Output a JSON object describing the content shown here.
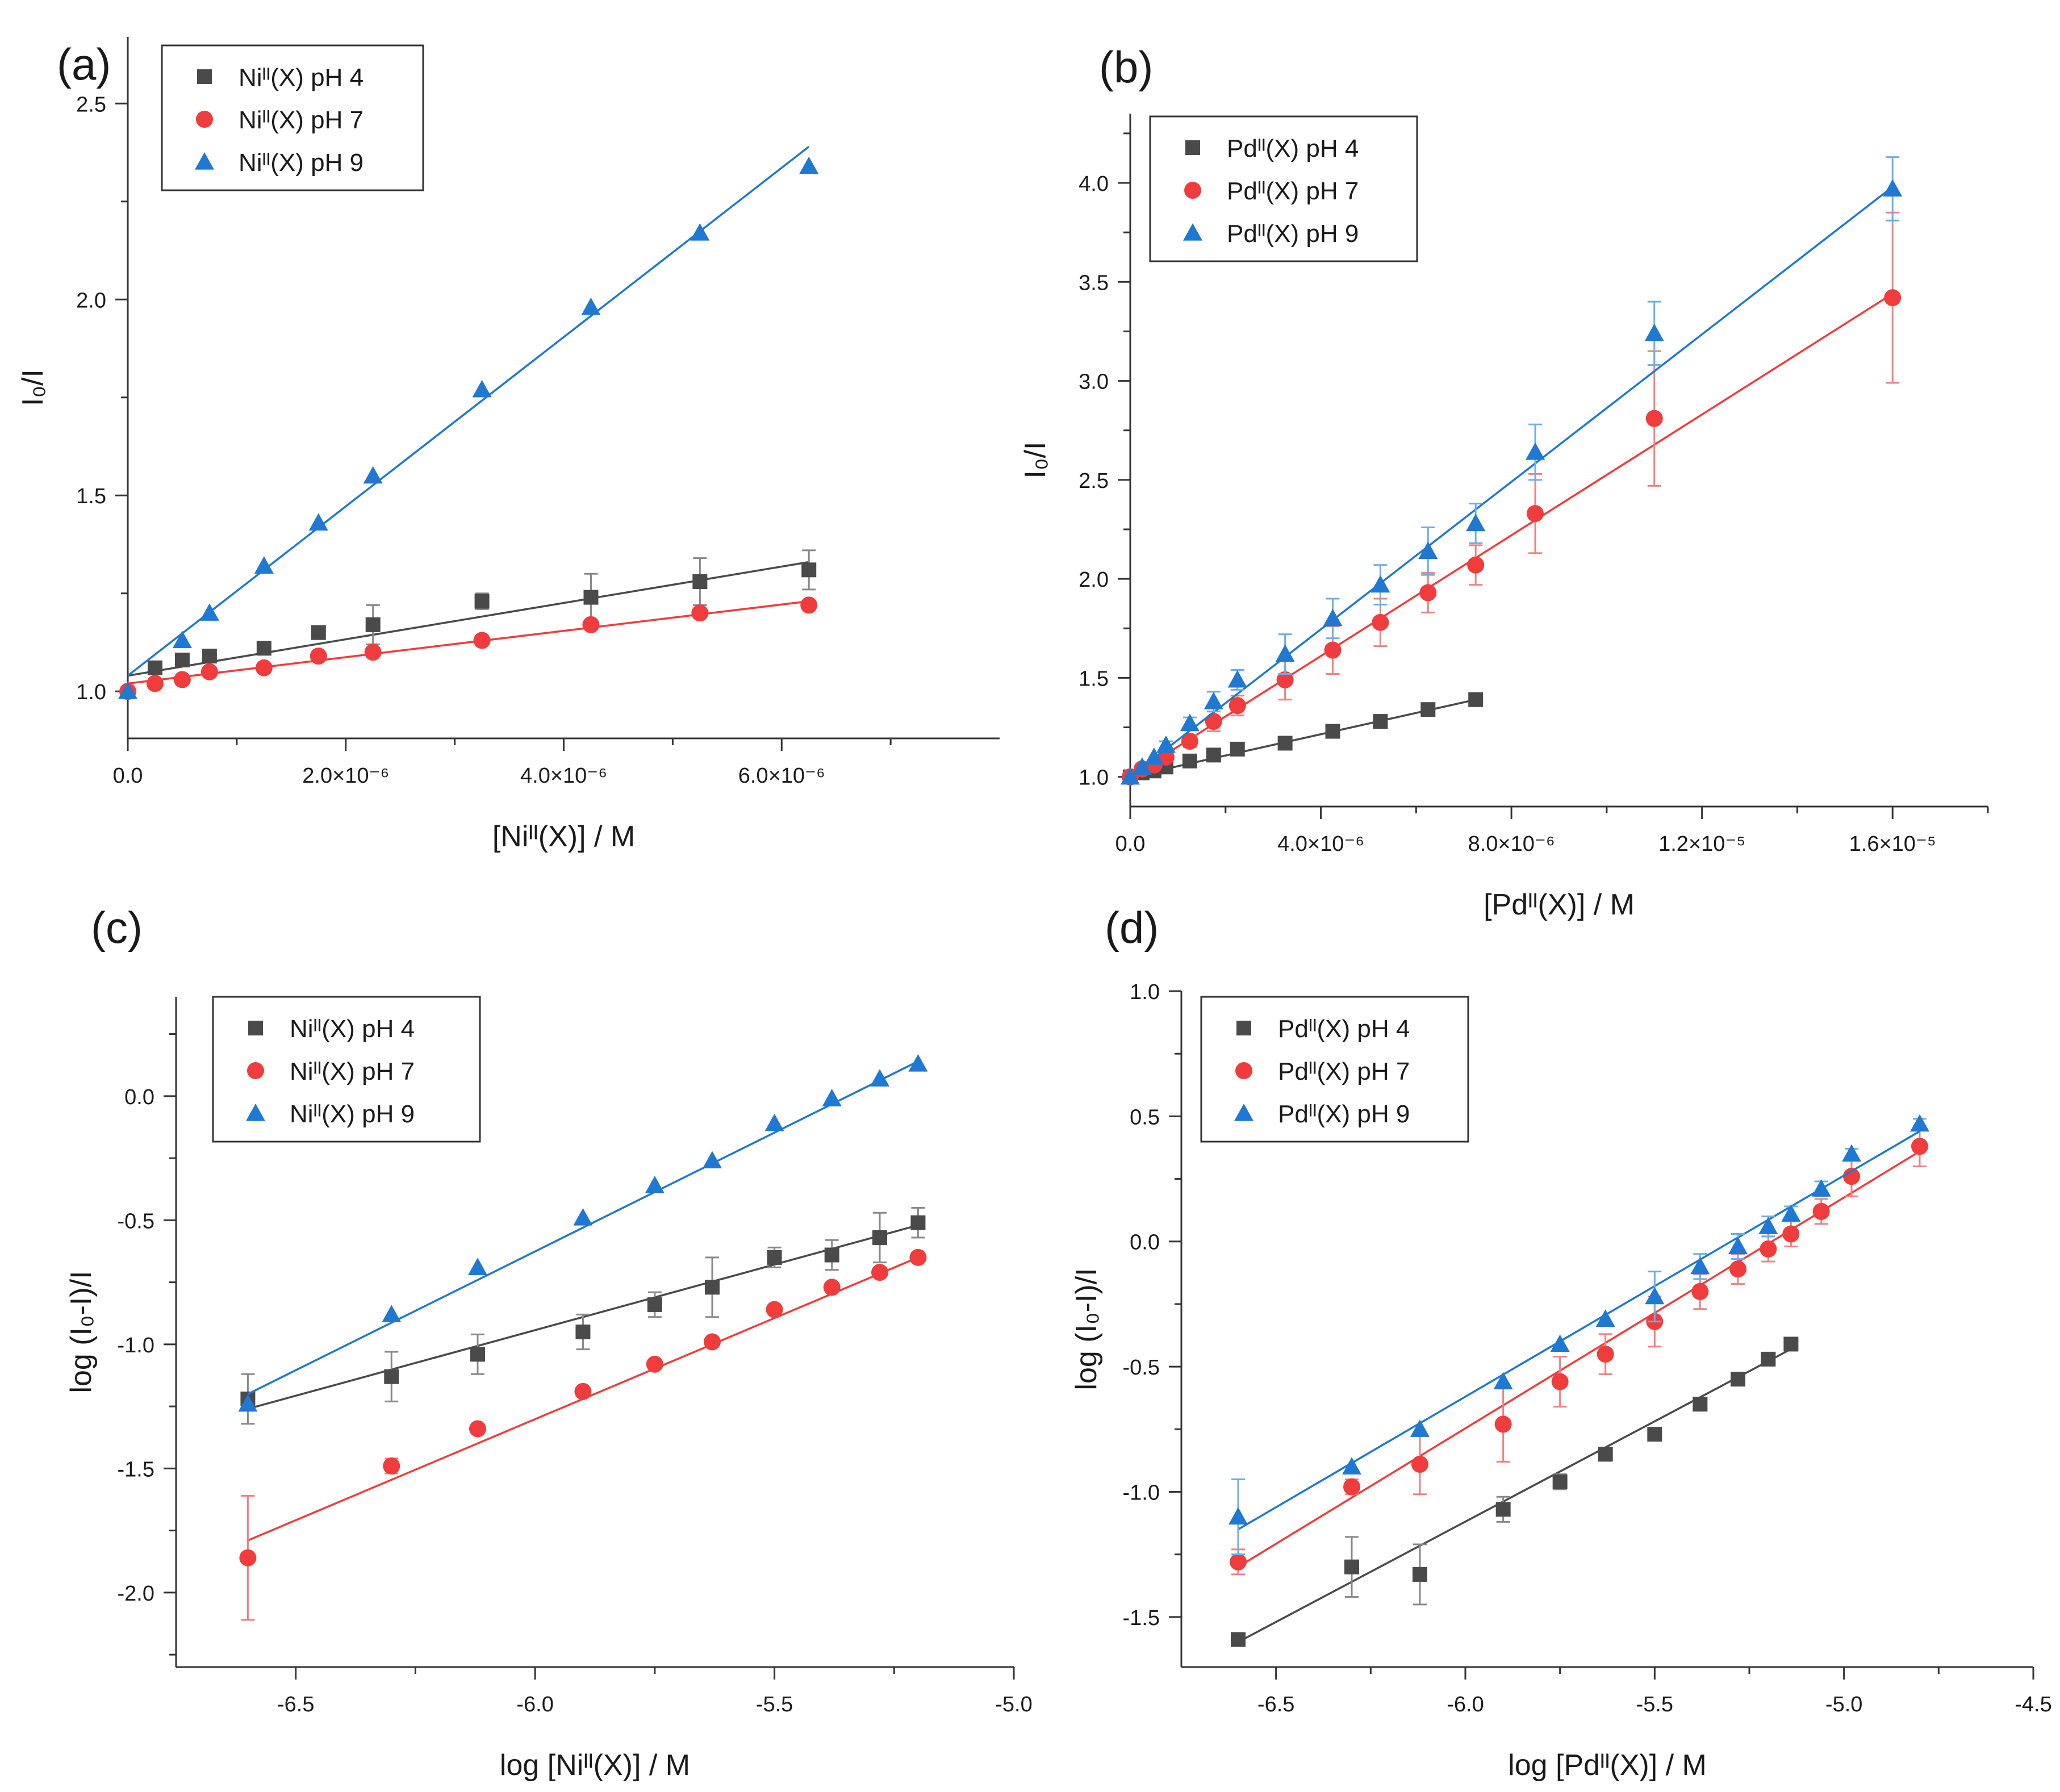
{
  "chart_data": [
    {
      "type": "scatter",
      "panel_label": "(a)",
      "xlabel": "[Niᴵᴵ(X)] / M",
      "ylabel": "I₀/I",
      "xlim": [
        0,
        8e-06
      ],
      "ylim": [
        0.88,
        2.67
      ],
      "xticks": [
        0,
        2e-06,
        4e-06,
        6e-06
      ],
      "xtick_labels": [
        "0.0",
        "2.0×10⁻⁶",
        "4.0×10⁻⁶",
        "6.0×10⁻⁶"
      ],
      "yticks": [
        1.0,
        1.5,
        2.0,
        2.5
      ],
      "ytick_labels": [
        "1.0",
        "1.5",
        "2.0",
        "2.5"
      ],
      "legend_position": "top-left",
      "series": [
        {
          "name": "Niᴵᴵ(X) pH 4",
          "color": "#4a4a4a",
          "marker": "square",
          "x": [
            2.5e-07,
            5e-07,
            7.5e-07,
            1.25e-06,
            1.75e-06,
            2.25e-06,
            3.25e-06,
            4.25e-06,
            5.25e-06,
            6.25e-06
          ],
          "y": [
            1.06,
            1.08,
            1.09,
            1.11,
            1.15,
            1.17,
            1.23,
            1.24,
            1.28,
            1.31
          ],
          "err": [
            0,
            0,
            0,
            0.01,
            0.01,
            0.05,
            0.02,
            0.06,
            0.06,
            0.05
          ],
          "fit": [
            [
              0,
              1.04
            ],
            [
              6.25e-06,
              1.33
            ]
          ]
        },
        {
          "name": "Niᴵᴵ(X) pH 7",
          "color": "#f03c3c",
          "marker": "circle",
          "x": [
            0,
            2.5e-07,
            5e-07,
            7.5e-07,
            1.25e-06,
            1.75e-06,
            2.25e-06,
            3.25e-06,
            4.25e-06,
            5.25e-06,
            6.25e-06
          ],
          "y": [
            1.0,
            1.02,
            1.03,
            1.05,
            1.06,
            1.09,
            1.1,
            1.13,
            1.17,
            1.2,
            1.22
          ],
          "err": [
            0,
            0,
            0,
            0,
            0,
            0,
            0,
            0,
            0,
            0,
            0
          ],
          "fit": [
            [
              0,
              1.02
            ],
            [
              6.25e-06,
              1.23
            ]
          ]
        },
        {
          "name": "Niᴵᴵ(X) pH 9",
          "color": "#1f78d1",
          "marker": "triangle",
          "x": [
            0,
            5e-07,
            7.5e-07,
            1.25e-06,
            1.75e-06,
            2.25e-06,
            3.25e-06,
            4.25e-06,
            5.25e-06,
            6.25e-06
          ],
          "y": [
            1.0,
            1.13,
            1.2,
            1.32,
            1.43,
            1.55,
            1.77,
            1.98,
            2.17,
            2.34
          ],
          "err": [
            0,
            0,
            0,
            0,
            0,
            0,
            0,
            0,
            0,
            0
          ],
          "fit": [
            [
              0,
              1.04
            ],
            [
              6.25e-06,
              2.39
            ]
          ]
        }
      ]
    },
    {
      "type": "scatter",
      "panel_label": "(b)",
      "xlabel": "[Pdᴵᴵ(X)] / M",
      "ylabel": "I₀/I",
      "xlim": [
        0,
        1.8e-05
      ],
      "ylim": [
        0.85,
        4.35
      ],
      "xticks": [
        0,
        4e-06,
        8e-06,
        1.2e-05,
        1.6e-05
      ],
      "xtick_labels": [
        "0.0",
        "4.0×10⁻⁶",
        "8.0×10⁻⁶",
        "1.2×10⁻⁵",
        "1.6×10⁻⁵"
      ],
      "yticks": [
        1.0,
        1.5,
        2.0,
        2.5,
        3.0,
        3.5,
        4.0
      ],
      "ytick_labels": [
        "1.0",
        "1.5",
        "2.0",
        "2.5",
        "3.0",
        "3.5",
        "4.0"
      ],
      "legend_position": "top-left",
      "series": [
        {
          "name": "Pdᴵᴵ(X) pH 4",
          "color": "#4a4a4a",
          "marker": "square",
          "x": [
            0,
            2.5e-07,
            5e-07,
            7.5e-07,
            1.25e-06,
            1.75e-06,
            2.25e-06,
            3.25e-06,
            4.25e-06,
            5.25e-06,
            6.25e-06,
            7.25e-06
          ],
          "y": [
            1.0,
            1.02,
            1.03,
            1.05,
            1.08,
            1.11,
            1.14,
            1.17,
            1.23,
            1.28,
            1.34,
            1.39
          ],
          "err": [
            0,
            0,
            0,
            0,
            0,
            0,
            0,
            0,
            0,
            0,
            0,
            0
          ],
          "fit": [
            [
              0,
              1.0
            ],
            [
              7.25e-06,
              1.39
            ]
          ]
        },
        {
          "name": "Pdᴵᴵ(X) pH 7",
          "color": "#f03c3c",
          "marker": "circle",
          "x": [
            0,
            2.5e-07,
            5e-07,
            7.5e-07,
            1.25e-06,
            1.75e-06,
            2.25e-06,
            3.25e-06,
            4.25e-06,
            5.25e-06,
            6.25e-06,
            7.25e-06,
            8.5e-06,
            1.1e-05,
            1.6e-05
          ],
          "y": [
            1.0,
            1.04,
            1.06,
            1.1,
            1.18,
            1.28,
            1.36,
            1.49,
            1.64,
            1.78,
            1.93,
            2.07,
            2.33,
            2.81,
            3.42
          ],
          "err": [
            0,
            0,
            0,
            0.02,
            0.03,
            0.05,
            0.05,
            0.1,
            0.12,
            0.12,
            0.1,
            0.1,
            0.2,
            0.34,
            0.43
          ],
          "fit": [
            [
              0,
              1.0
            ],
            [
              1.6e-05,
              3.44
            ]
          ]
        },
        {
          "name": "Pdᴵᴵ(X) pH 9",
          "color": "#1f78d1",
          "marker": "triangle",
          "x": [
            0,
            2.5e-07,
            5e-07,
            7.5e-07,
            1.25e-06,
            1.75e-06,
            2.25e-06,
            3.25e-06,
            4.25e-06,
            5.25e-06,
            6.25e-06,
            7.25e-06,
            8.5e-06,
            1.1e-05,
            1.6e-05
          ],
          "y": [
            1.0,
            1.05,
            1.1,
            1.16,
            1.27,
            1.38,
            1.49,
            1.62,
            1.8,
            1.97,
            2.14,
            2.28,
            2.64,
            3.24,
            3.97
          ],
          "err": [
            0,
            0,
            0,
            0.02,
            0.03,
            0.05,
            0.05,
            0.1,
            0.1,
            0.1,
            0.12,
            0.1,
            0.14,
            0.16,
            0.16
          ],
          "fit": [
            [
              0,
              1.0
            ],
            [
              1.6e-05,
              3.98
            ]
          ]
        }
      ]
    },
    {
      "type": "scatter",
      "panel_label": "(c)",
      "xlabel": "log [Niᴵᴵ(X)] / M",
      "ylabel": "log (I₀-I)/I",
      "xlim": [
        -6.75,
        -5.0
      ],
      "ylim": [
        -2.3,
        0.4
      ],
      "xticks": [
        -6.5,
        -6.0,
        -5.5,
        -5.0
      ],
      "xtick_labels": [
        "-6.5",
        "-6.0",
        "-5.5",
        "-5.0"
      ],
      "yticks": [
        -2.0,
        -1.5,
        -1.0,
        -0.5,
        0.0
      ],
      "ytick_labels": [
        "-2.0",
        "-1.5",
        "-1.0",
        "-0.5",
        "0.0"
      ],
      "legend_position": "top-left",
      "series": [
        {
          "name": "Niᴵᴵ(X) pH 4",
          "color": "#4a4a4a",
          "marker": "square",
          "x": [
            -6.6,
            -6.3,
            -6.12,
            -5.9,
            -5.75,
            -5.63,
            -5.5,
            -5.38,
            -5.28,
            -5.2
          ],
          "y": [
            -1.22,
            -1.13,
            -1.04,
            -0.95,
            -0.84,
            -0.77,
            -0.65,
            -0.64,
            -0.57,
            -0.51
          ],
          "err": [
            0.1,
            0.1,
            0.08,
            0.07,
            0.05,
            0.12,
            0.04,
            0.06,
            0.1,
            0.06
          ],
          "fit": [
            [
              -6.6,
              -1.26
            ],
            [
              -5.2,
              -0.52
            ]
          ]
        },
        {
          "name": "Niᴵᴵ(X) pH 7",
          "color": "#f03c3c",
          "marker": "circle",
          "x": [
            -6.6,
            -6.3,
            -6.12,
            -5.9,
            -5.75,
            -5.63,
            -5.5,
            -5.38,
            -5.28,
            -5.2
          ],
          "y": [
            -1.86,
            -1.49,
            -1.34,
            -1.19,
            -1.08,
            -0.99,
            -0.86,
            -0.77,
            -0.71,
            -0.65
          ],
          "err": [
            0.25,
            0.03,
            0,
            0,
            0,
            0,
            0,
            0,
            0,
            0
          ],
          "fit": [
            [
              -6.6,
              -1.79
            ],
            [
              -5.2,
              -0.65
            ]
          ]
        },
        {
          "name": "Niᴵᴵ(X) pH 9",
          "color": "#1f78d1",
          "marker": "triangle",
          "x": [
            -6.6,
            -6.3,
            -6.12,
            -5.9,
            -5.75,
            -5.63,
            -5.5,
            -5.38,
            -5.28,
            -5.2
          ],
          "y": [
            -1.24,
            -0.88,
            -0.69,
            -0.49,
            -0.36,
            -0.26,
            -0.11,
            -0.01,
            0.07,
            0.13
          ],
          "err": [
            0,
            0,
            0,
            0,
            0,
            0,
            0,
            0,
            0,
            0
          ],
          "fit": [
            [
              -6.6,
              -1.2
            ],
            [
              -5.2,
              0.14
            ]
          ]
        }
      ]
    },
    {
      "type": "scatter",
      "panel_label": "(d)",
      "xlabel": "log [Pdᴵᴵ(X)] / M",
      "ylabel": "log (I₀-I)/I",
      "xlim": [
        -6.75,
        -4.5
      ],
      "ylim": [
        -1.7,
        1.0
      ],
      "xticks": [
        -6.5,
        -6.0,
        -5.5,
        -5.0,
        -4.5
      ],
      "xtick_labels": [
        "-6.5",
        "-6.0",
        "-5.5",
        "-5.0",
        "-4.5"
      ],
      "yticks": [
        -1.5,
        -1.0,
        -0.5,
        0.0,
        0.5,
        1.0
      ],
      "ytick_labels": [
        "-1.5",
        "-1.0",
        "-0.5",
        "0.0",
        "0.5",
        "1.0"
      ],
      "legend_position": "top-left",
      "series": [
        {
          "name": "Pdᴵᴵ(X) pH 4",
          "color": "#4a4a4a",
          "marker": "square",
          "x": [
            -6.6,
            -6.3,
            -6.12,
            -5.9,
            -5.75,
            -5.63,
            -5.5,
            -5.38,
            -5.28,
            -5.2,
            -5.14
          ],
          "y": [
            -1.59,
            -1.3,
            -1.33,
            -1.07,
            -0.96,
            -0.85,
            -0.77,
            -0.65,
            -0.55,
            -0.47,
            -0.41
          ],
          "err": [
            0,
            0.12,
            0.12,
            0.05,
            0.03,
            0,
            0,
            0,
            0,
            0,
            0
          ],
          "fit": [
            [
              -6.6,
              -1.6
            ],
            [
              -5.14,
              -0.43
            ]
          ]
        },
        {
          "name": "Pdᴵᴵ(X) pH 7",
          "color": "#f03c3c",
          "marker": "circle",
          "x": [
            -6.6,
            -6.3,
            -6.12,
            -5.9,
            -5.75,
            -5.63,
            -5.5,
            -5.38,
            -5.28,
            -5.2,
            -5.14,
            -5.06,
            -4.98,
            -4.8
          ],
          "y": [
            -1.28,
            -0.98,
            -0.89,
            -0.73,
            -0.56,
            -0.45,
            -0.32,
            -0.2,
            -0.11,
            -0.03,
            0.03,
            0.12,
            0.26,
            0.38
          ],
          "err": [
            0.05,
            0.03,
            0.12,
            0.15,
            0.1,
            0.08,
            0.1,
            0.07,
            0.06,
            0.05,
            0.05,
            0.05,
            0.08,
            0.08
          ],
          "fit": [
            [
              -6.6,
              -1.3
            ],
            [
              -4.8,
              0.36
            ]
          ]
        },
        {
          "name": "Pdᴵᴵ(X) pH 9",
          "color": "#1f78d1",
          "marker": "triangle",
          "x": [
            -6.6,
            -6.3,
            -6.12,
            -5.9,
            -5.75,
            -5.63,
            -5.5,
            -5.38,
            -5.28,
            -5.2,
            -5.14,
            -5.06,
            -4.98,
            -4.8
          ],
          "y": [
            -1.1,
            -0.9,
            -0.75,
            -0.56,
            -0.41,
            -0.31,
            -0.22,
            -0.1,
            -0.02,
            0.06,
            0.11,
            0.21,
            0.35,
            0.47
          ],
          "err": [
            0.15,
            0,
            0,
            0,
            0,
            0,
            0.1,
            0.05,
            0.05,
            0.04,
            0.03,
            0.03,
            0.02,
            0.02
          ],
          "fit": [
            [
              -6.6,
              -1.15
            ],
            [
              -4.8,
              0.44
            ]
          ]
        }
      ]
    }
  ]
}
